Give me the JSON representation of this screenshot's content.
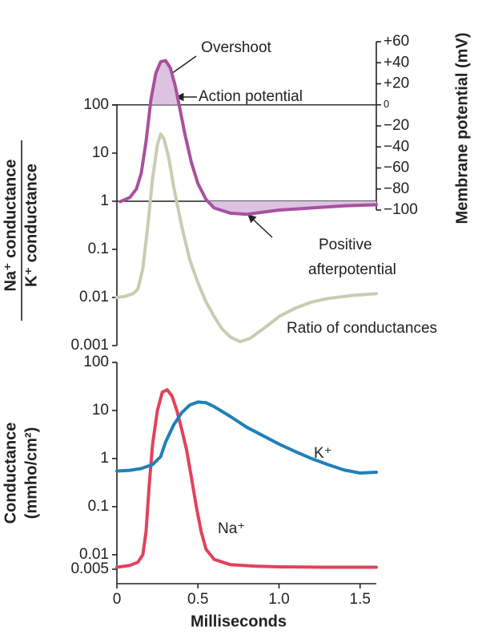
{
  "chart_data": [
    {
      "type": "line",
      "ylabel": [
        "Na⁺ conductance",
        "K⁺ conductance"
      ],
      "y2label": "Membrane potential (mV)",
      "log_y": true,
      "xlim": [
        0,
        1.6
      ],
      "ylim": [
        0.001,
        100
      ],
      "yticks": [
        100,
        10,
        1,
        0.1,
        0.01,
        0.001
      ],
      "y2lim": [
        -100,
        60
      ],
      "y2ticks": [
        {
          "value": 60,
          "label": "+60"
        },
        {
          "value": 40,
          "label": "+40"
        },
        {
          "value": 20,
          "label": "+20"
        },
        0,
        {
          "value": -20,
          "label": "−20"
        },
        {
          "value": -40,
          "label": "−40"
        },
        {
          "value": -60,
          "label": "−60"
        },
        {
          "value": -80,
          "label": "−80"
        },
        {
          "value": -100,
          "label": "−100"
        }
      ],
      "reference_lines": [
        1
      ],
      "shade_color": "#dcc3e2",
      "series": [
        {
          "name": "Ratio of conductances",
          "color": "#c9ccb1",
          "x": [
            0,
            0.05,
            0.1,
            0.13,
            0.16,
            0.19,
            0.22,
            0.25,
            0.27,
            0.29,
            0.32,
            0.35,
            0.4,
            0.45,
            0.5,
            0.55,
            0.6,
            0.65,
            0.7,
            0.76,
            0.82,
            0.9,
            1.0,
            1.1,
            1.2,
            1.3,
            1.45,
            1.6
          ],
          "values": [
            0.01,
            0.0105,
            0.012,
            0.015,
            0.04,
            0.3,
            3,
            15,
            25,
            20,
            8,
            2,
            0.3,
            0.06,
            0.02,
            0.008,
            0.004,
            0.0022,
            0.0015,
            0.0012,
            0.0014,
            0.0022,
            0.004,
            0.006,
            0.008,
            0.0095,
            0.011,
            0.012
          ]
        },
        {
          "name": "Action potential",
          "color": "#a9509f",
          "axis": "y2",
          "x": [
            0.02,
            0.08,
            0.12,
            0.15,
            0.18,
            0.21,
            0.24,
            0.27,
            0.3,
            0.33,
            0.36,
            0.39,
            0.42,
            0.46,
            0.5,
            0.55,
            0.6,
            0.7,
            0.8,
            0.9,
            1.0,
            1.2,
            1.4,
            1.6
          ],
          "values": [
            -92,
            -88,
            -80,
            -65,
            -35,
            5,
            30,
            41,
            42,
            35,
            18,
            -5,
            -28,
            -55,
            -75,
            -90,
            -98,
            -103,
            -104,
            -102,
            -100,
            -98,
            -96,
            -95
          ]
        }
      ],
      "annotations": [
        {
          "text": "Overshoot"
        },
        {
          "text": [
            "Positive",
            "afterpotential"
          ]
        }
      ]
    },
    {
      "type": "line",
      "ylabel": [
        "Conductance",
        "(mmho/cm²)"
      ],
      "xlabel": "Milliseconds",
      "log_y": true,
      "xlim": [
        0,
        1.6
      ],
      "xticks": [
        0,
        0.5,
        {
          "value": 1,
          "label": "1.0"
        },
        1.5
      ],
      "ylim": [
        0.0025,
        100
      ],
      "yticks": [
        100,
        10,
        1,
        0.1,
        0.01,
        0.005
      ],
      "series": [
        {
          "name": "Na⁺",
          "color": "#e2425c",
          "x": [
            0,
            0.08,
            0.13,
            0.16,
            0.18,
            0.2,
            0.22,
            0.25,
            0.28,
            0.31,
            0.34,
            0.37,
            0.4,
            0.43,
            0.46,
            0.49,
            0.52,
            0.55,
            0.6,
            0.7,
            0.85,
            1.0,
            1.3,
            1.6
          ],
          "values": [
            0.0055,
            0.006,
            0.007,
            0.01,
            0.03,
            0.3,
            2,
            10,
            24,
            27,
            20,
            10,
            4,
            1.5,
            0.4,
            0.1,
            0.03,
            0.013,
            0.008,
            0.0062,
            0.0058,
            0.0056,
            0.0055,
            0.0055
          ]
        },
        {
          "name": "K⁺",
          "color": "#1f80b9",
          "x": [
            0,
            0.08,
            0.15,
            0.22,
            0.27,
            0.3,
            0.35,
            0.4,
            0.45,
            0.5,
            0.55,
            0.6,
            0.7,
            0.8,
            0.9,
            1.0,
            1.1,
            1.2,
            1.3,
            1.4,
            1.5,
            1.6
          ],
          "values": [
            0.55,
            0.57,
            0.62,
            0.75,
            1.1,
            2.2,
            5,
            9,
            13,
            15,
            14.5,
            12,
            7.5,
            4.5,
            3,
            2,
            1.4,
            1,
            0.75,
            0.58,
            0.5,
            0.52
          ]
        }
      ]
    }
  ]
}
